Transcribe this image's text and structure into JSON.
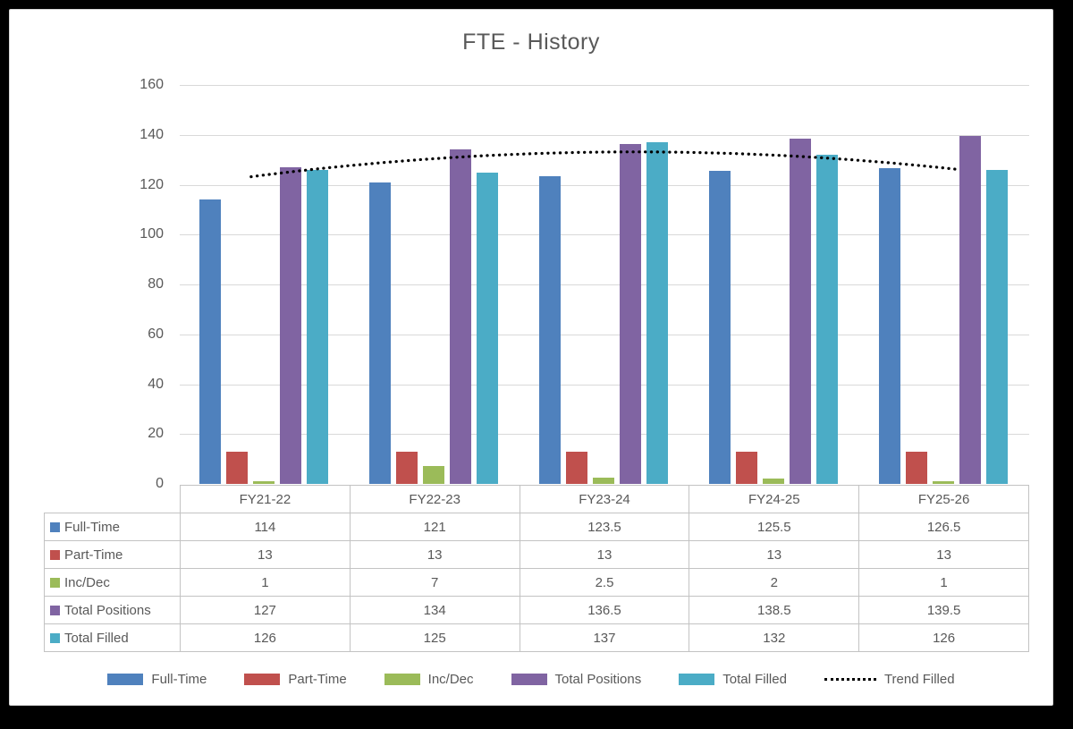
{
  "chart_data": {
    "type": "bar",
    "title": "FTE - History",
    "categories": [
      "FY21-22",
      "FY22-23",
      "FY23-24",
      "FY24-25",
      "FY25-26"
    ],
    "series": [
      {
        "name": "Full-Time",
        "color": "#4f81bd",
        "values": [
          114,
          121,
          123.5,
          125.5,
          126.5
        ]
      },
      {
        "name": "Part-Time",
        "color": "#c0504d",
        "values": [
          13,
          13,
          13,
          13,
          13
        ]
      },
      {
        "name": "Inc/Dec",
        "color": "#9bbb59",
        "values": [
          1,
          7,
          2.5,
          2,
          1
        ]
      },
      {
        "name": "Total Positions",
        "color": "#8064a2",
        "values": [
          127,
          134,
          136.5,
          138.5,
          139.5
        ]
      },
      {
        "name": "Total Filled",
        "color": "#4bacc6",
        "values": [
          126,
          125,
          137,
          132,
          126
        ]
      }
    ],
    "trendline": {
      "name": "Trend Filled",
      "color": "#000000",
      "style": "dotted",
      "basis": "Total Filled",
      "fit": "polynomial-2",
      "points": [
        123.9,
        130.4,
        133.1,
        131.8,
        126.7
      ]
    },
    "y_axis": {
      "min": 0,
      "max": 160,
      "step": 20,
      "ticks": [
        "0",
        "20",
        "40",
        "60",
        "80",
        "100",
        "120",
        "140",
        "160"
      ]
    },
    "grid": true,
    "legend_position": "bottom",
    "data_table": true
  },
  "style": {
    "text_color": "#595959",
    "gridline_color": "#d9d9d9",
    "table_border_color": "#c3c3c3",
    "trend_color": "#000000",
    "background": "#ffffff",
    "outer_border": "#000000"
  }
}
